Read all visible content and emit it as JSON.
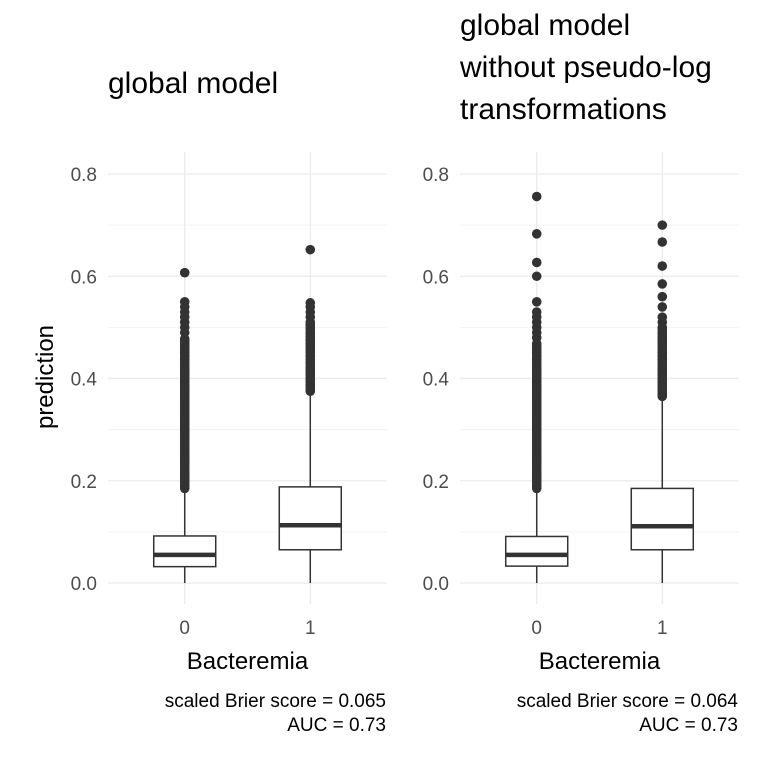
{
  "chart_data": [
    {
      "type": "box",
      "title": [
        "global model"
      ],
      "xlabel": "Bacteremia",
      "ylabel": "prediction",
      "ylim": [
        0,
        0.84
      ],
      "yticks": [
        0.0,
        0.2,
        0.4,
        0.6,
        0.8
      ],
      "ytick_labels": [
        "0.0",
        "0.2",
        "0.4",
        "0.6",
        "0.8"
      ],
      "grid": true,
      "categories": [
        "0",
        "1"
      ],
      "boxes": [
        {
          "category": "0",
          "whisker_low": 0.0,
          "q1": 0.032,
          "median": 0.055,
          "q3": 0.092,
          "whisker_high": 0.18,
          "outlier_range": [
            0.185,
            0.48
          ],
          "outliers": [
            0.49,
            0.5,
            0.51,
            0.52,
            0.53,
            0.54,
            0.55,
            0.607
          ]
        },
        {
          "category": "1",
          "whisker_low": 0.0,
          "q1": 0.065,
          "median": 0.113,
          "q3": 0.188,
          "whisker_high": 0.37,
          "outlier_range": [
            0.375,
            0.51
          ],
          "outliers": [
            0.52,
            0.53,
            0.54,
            0.548,
            0.652
          ]
        }
      ],
      "caption": [
        "scaled Brier score = 0.065",
        "AUC = 0.73"
      ]
    },
    {
      "type": "box",
      "title": [
        "global model",
        "without pseudo-log",
        "transformations"
      ],
      "xlabel": "Bacteremia",
      "ylabel": "",
      "ylim": [
        0,
        0.84
      ],
      "yticks": [
        0.0,
        0.2,
        0.4,
        0.6,
        0.8
      ],
      "ytick_labels": [
        "0.0",
        "0.2",
        "0.4",
        "0.6",
        "0.8"
      ],
      "grid": true,
      "categories": [
        "0",
        "1"
      ],
      "boxes": [
        {
          "category": "0",
          "whisker_low": 0.0,
          "q1": 0.033,
          "median": 0.055,
          "q3": 0.091,
          "whisker_high": 0.18,
          "outlier_range": [
            0.185,
            0.47
          ],
          "outliers": [
            0.48,
            0.49,
            0.5,
            0.51,
            0.52,
            0.53,
            0.55,
            0.6,
            0.627,
            0.683,
            0.756
          ]
        },
        {
          "category": "1",
          "whisker_low": 0.0,
          "q1": 0.065,
          "median": 0.111,
          "q3": 0.185,
          "whisker_high": 0.36,
          "outlier_range": [
            0.365,
            0.5
          ],
          "outliers": [
            0.51,
            0.52,
            0.54,
            0.56,
            0.585,
            0.62,
            0.667,
            0.7
          ]
        }
      ],
      "caption": [
        "scaled Brier score = 0.064",
        "AUC = 0.73"
      ]
    }
  ]
}
